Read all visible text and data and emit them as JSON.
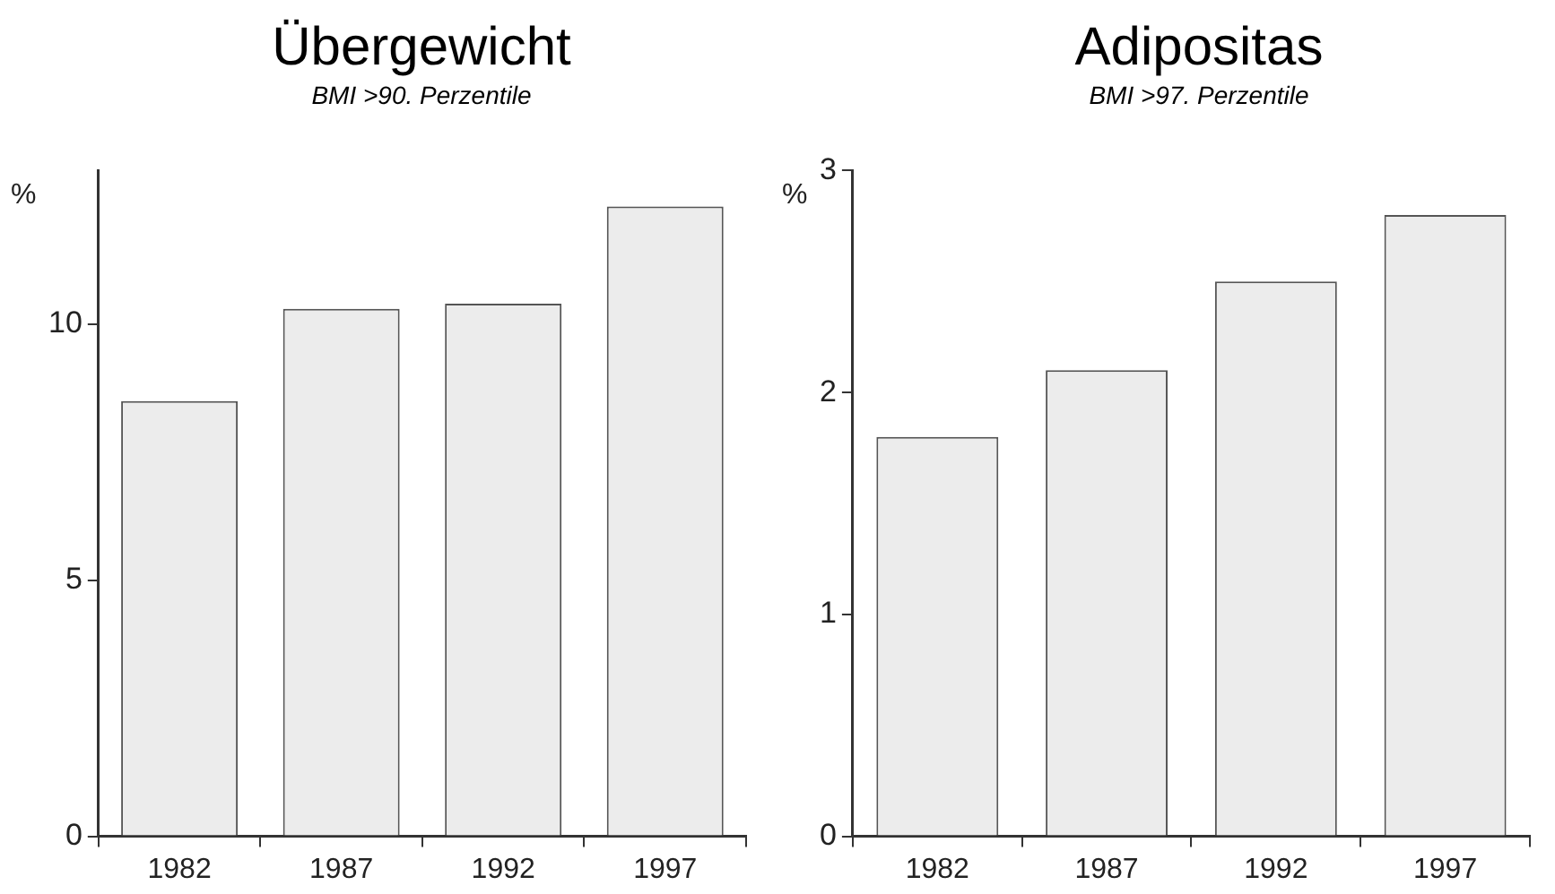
{
  "chart_data": [
    {
      "type": "bar",
      "title": "Übergewicht",
      "subtitle": "BMI >90. Perzentile",
      "ylabel": "%",
      "categories": [
        "1982",
        "1987",
        "1992",
        "1997"
      ],
      "values": [
        8.5,
        10.3,
        10.4,
        12.3
      ],
      "color": "#ececec",
      "ylim": [
        0,
        13
      ],
      "yticks": [
        0,
        5,
        10
      ],
      "grid": false,
      "legend": false
    },
    {
      "type": "bar",
      "title": "Adipositas",
      "subtitle": "BMI >97. Perzentile",
      "ylabel": "%",
      "categories": [
        "1982",
        "1987",
        "1992",
        "1997"
      ],
      "values": [
        1.8,
        2.1,
        2.5,
        2.8
      ],
      "color": "#ececec",
      "ylim": [
        0,
        3
      ],
      "yticks": [
        0,
        1,
        2,
        3
      ],
      "grid": false,
      "legend": false
    }
  ]
}
